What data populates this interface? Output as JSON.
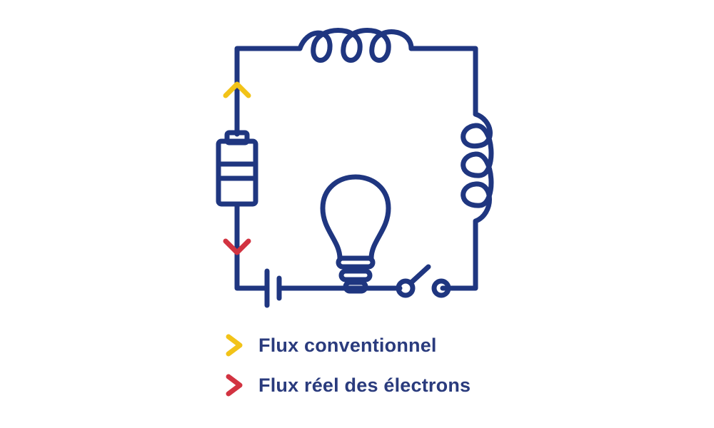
{
  "colors": {
    "wire": "#1f3680",
    "conventional": "#f2c318",
    "electron": "#d23341",
    "text": "#2a3b7d"
  },
  "legend": {
    "items": [
      {
        "label": "Flux conventionnel",
        "icon": "chevron-right-icon",
        "color_key": "conventional"
      },
      {
        "label": "Flux réel des électrons",
        "icon": "chevron-right-icon",
        "color_key": "electron"
      }
    ]
  }
}
